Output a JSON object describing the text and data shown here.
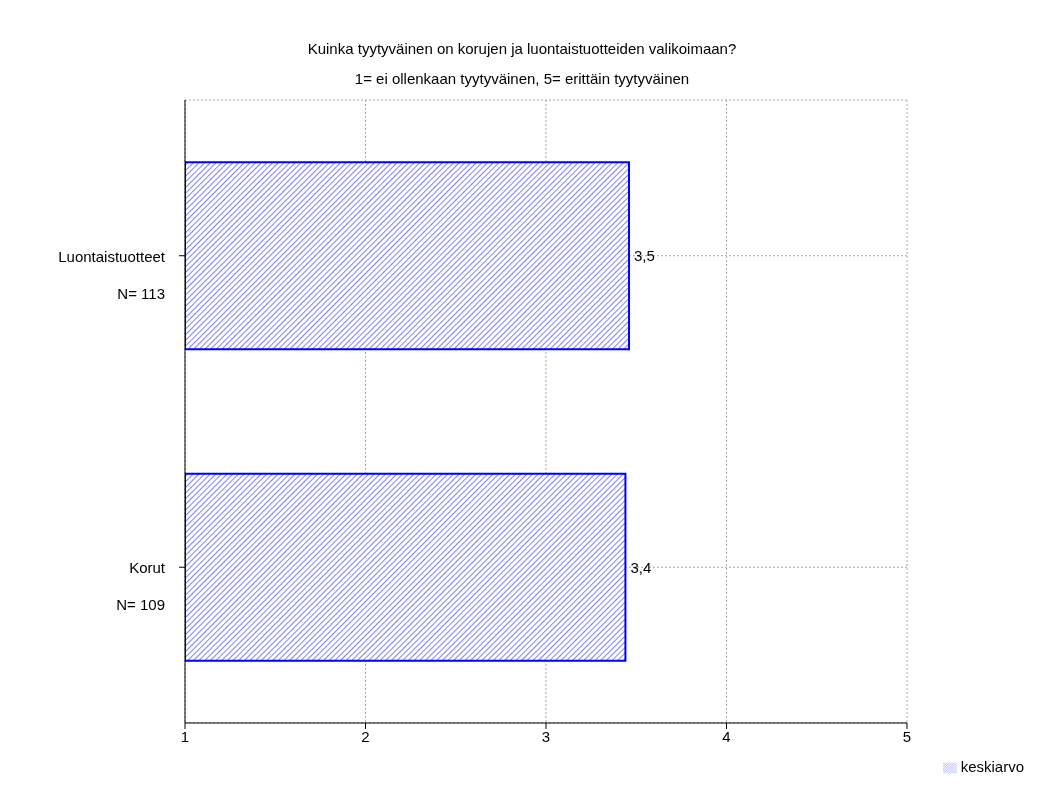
{
  "chart_data": {
    "type": "bar",
    "orientation": "horizontal",
    "title": "Kuinka tyytyväinen on korujen ja luontaistuotteiden valikoimaan?",
    "subtitle": "1= ei ollenkaan tyytyväinen, 5= erittäin tyytyväinen",
    "categories": [
      "Luontaistuotteet\nN= 113",
      "Korut\nN= 109"
    ],
    "series": [
      {
        "name": "keskiarvo",
        "color": "#0000ff",
        "values": [
          3.46,
          3.44
        ],
        "value_labels": [
          "3,5",
          "3,4"
        ]
      }
    ],
    "xlim": [
      1,
      5
    ],
    "xticks": [
      1,
      2,
      3,
      4,
      5
    ],
    "grid": true,
    "legend": "bottom right"
  }
}
